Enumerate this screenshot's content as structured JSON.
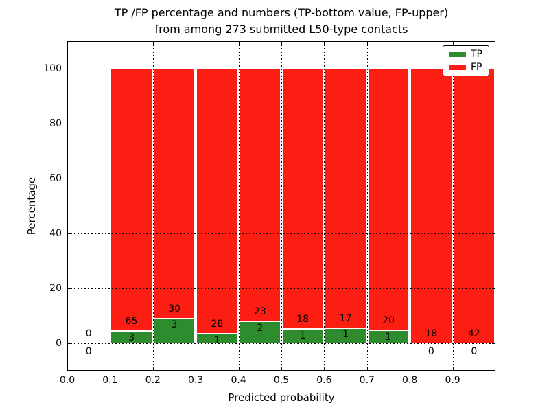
{
  "title": {
    "line1": "TP /FP percentage and numbers (TP-bottom value, FP-upper)",
    "line2": "from among 273 submitted L50-type contacts"
  },
  "axes": {
    "xlabel": "Predicted probability",
    "ylabel": "Percentage",
    "xtick_labels": [
      "0.0",
      "0.1",
      "0.2",
      "0.3",
      "0.4",
      "0.5",
      "0.6",
      "0.7",
      "0.8",
      "0.9"
    ],
    "ytick_labels": [
      "0",
      "20",
      "40",
      "60",
      "80",
      "100"
    ]
  },
  "legend": {
    "items": [
      {
        "label": "TP",
        "color": "#2e8b2e"
      },
      {
        "label": "FP",
        "color": "#fc1d13"
      }
    ]
  },
  "chart_data": {
    "type": "bar",
    "stacked": true,
    "title": "TP /FP percentage and numbers (TP-bottom value, FP-upper) from among 273 submitted L50-type contacts",
    "xlabel": "Predicted probability",
    "ylabel": "Percentage",
    "xlim": [
      0.0,
      1.0
    ],
    "ylim": [
      -10,
      110
    ],
    "xticks": [
      0.0,
      0.1,
      0.2,
      0.3,
      0.4,
      0.5,
      0.6,
      0.7,
      0.8,
      0.9
    ],
    "yticks": [
      0,
      20,
      40,
      60,
      80,
      100
    ],
    "grid": "dotted black, both axes, drawn above bars",
    "legend_position": "upper right",
    "total_submitted": 273,
    "bin_width": 0.1,
    "categories": [
      "0.0-0.1",
      "0.1-0.2",
      "0.2-0.3",
      "0.3-0.4",
      "0.4-0.5",
      "0.5-0.6",
      "0.6-0.7",
      "0.7-0.8",
      "0.8-0.9",
      "0.9-1.0"
    ],
    "series": [
      {
        "name": "TP",
        "color": "#2e8b2e",
        "counts": [
          0,
          3,
          3,
          1,
          2,
          1,
          1,
          1,
          0,
          0
        ],
        "pct": [
          0,
          4.41,
          9.09,
          3.45,
          8.0,
          5.26,
          5.56,
          4.76,
          0,
          0
        ]
      },
      {
        "name": "FP",
        "color": "#fc1d13",
        "counts": [
          0,
          65,
          30,
          28,
          23,
          18,
          17,
          20,
          18,
          42
        ],
        "pct": [
          0,
          95.59,
          90.91,
          96.55,
          92.0,
          94.74,
          94.44,
          95.24,
          100,
          100
        ]
      }
    ]
  }
}
